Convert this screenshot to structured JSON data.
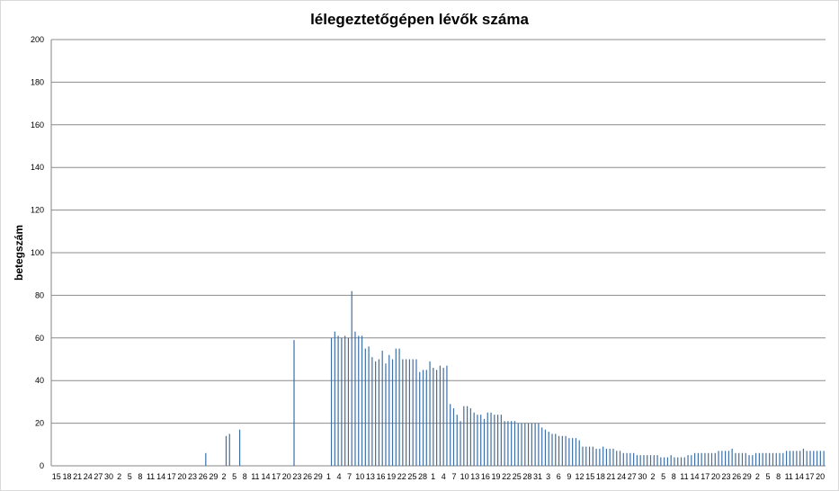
{
  "chart_data": {
    "type": "bar",
    "title": "lélegeztetőgépen lévők száma",
    "xlabel": "",
    "ylabel": "betegszám",
    "ylim": [
      0,
      200
    ],
    "yticks": [
      0,
      20,
      40,
      60,
      80,
      100,
      120,
      140,
      160,
      180,
      200
    ],
    "grid": true,
    "legend": "none",
    "xtick_labels": [
      "15",
      "18",
      "21",
      "24",
      "27",
      "30",
      "2",
      "5",
      "8",
      "11",
      "14",
      "17",
      "20",
      "23",
      "26",
      "29",
      "2",
      "5",
      "8",
      "11",
      "14",
      "17",
      "20",
      "23",
      "26",
      "29",
      "1",
      "4",
      "7",
      "10",
      "13",
      "16",
      "19",
      "22",
      "25",
      "28",
      "1",
      "4",
      "7",
      "10",
      "13",
      "16",
      "19",
      "22",
      "25",
      "28",
      "31",
      "3",
      "6",
      "9",
      "12",
      "15",
      "18",
      "21",
      "24",
      "27",
      "30",
      "2",
      "5",
      "8",
      "11",
      "14",
      "17",
      "20",
      "23",
      "26",
      "29",
      "2",
      "5",
      "8",
      "11",
      "14",
      "17",
      "20"
    ],
    "series": [
      {
        "color": "#3d6fa6",
        "values": [
          0,
          0,
          0,
          0,
          0,
          0,
          0,
          0,
          0,
          0,
          0,
          0,
          0,
          0,
          0,
          0,
          0,
          0,
          0,
          0,
          0,
          0,
          0,
          0,
          0,
          0,
          0,
          0,
          0,
          0,
          0,
          0,
          0,
          0,
          0,
          0,
          0,
          0,
          0,
          0,
          0,
          0,
          0,
          0,
          0,
          6,
          0,
          0,
          0,
          0,
          0,
          14,
          15,
          0,
          0,
          17,
          0,
          0,
          0,
          0,
          0,
          0,
          0,
          0,
          0,
          0,
          0,
          0,
          0,
          0,
          0,
          59,
          0,
          0,
          0,
          0,
          0,
          0,
          0,
          0,
          0,
          0,
          60,
          63,
          61,
          60,
          61,
          60,
          82,
          63,
          61,
          61,
          55,
          56,
          51,
          49,
          50,
          54,
          48,
          52,
          50,
          55,
          55,
          50,
          50,
          50,
          50,
          50,
          44,
          45,
          45,
          49,
          46,
          45,
          47,
          46,
          47,
          29,
          27,
          24,
          21,
          28,
          28,
          27,
          25,
          24,
          24,
          22,
          25,
          25,
          24,
          24,
          24,
          21,
          21,
          21,
          21,
          20,
          20,
          20,
          20,
          20,
          20,
          20,
          18,
          17,
          16,
          15,
          15,
          14,
          14,
          14,
          13,
          13,
          13,
          12,
          9,
          9,
          9,
          9,
          8,
          8,
          9,
          8,
          8,
          8,
          7,
          7,
          6,
          6,
          6,
          6,
          5,
          5,
          5,
          5,
          5,
          5,
          5,
          4,
          4,
          4,
          5,
          4,
          4,
          4,
          4,
          5,
          5,
          6,
          6,
          6,
          6,
          6,
          6,
          6,
          7,
          7,
          7,
          7,
          8,
          6,
          6,
          6,
          6,
          5,
          5,
          6,
          6,
          6,
          6,
          6,
          6,
          6,
          6,
          6,
          7,
          7,
          7,
          7,
          7,
          8,
          7,
          7,
          7,
          7,
          7,
          7
        ]
      },
      {
        "color": "#b5413a",
        "values": [
          0,
          0,
          0,
          0,
          0,
          0,
          0,
          0,
          0,
          0,
          0,
          0,
          0,
          0,
          0,
          0,
          0,
          0,
          0,
          0,
          0,
          0,
          0,
          0,
          0,
          0,
          0,
          0,
          0,
          0,
          0,
          0,
          0,
          0,
          0,
          0,
          0,
          0,
          0,
          0,
          0,
          0,
          0,
          0,
          0,
          0,
          0,
          0,
          0,
          0,
          0,
          0,
          0,
          0,
          0,
          0,
          0,
          0,
          0,
          0,
          0,
          0,
          0,
          0,
          0,
          0,
          0,
          0,
          0,
          0,
          0,
          0,
          0,
          0,
          0,
          0,
          0,
          0,
          0,
          0,
          0,
          0,
          0,
          0,
          0,
          0,
          0,
          0,
          0,
          0,
          0,
          0,
          0,
          0,
          0,
          0,
          0,
          0,
          0,
          0,
          0,
          0,
          0,
          0,
          0,
          0,
          0,
          0,
          0,
          0,
          0,
          0,
          0,
          0,
          0,
          0,
          0,
          0,
          0,
          0,
          0,
          0,
          0,
          0,
          0,
          0,
          0,
          0,
          0,
          0,
          0,
          0,
          0,
          0,
          0,
          0,
          0,
          0,
          0,
          0,
          0,
          0,
          0,
          0,
          0,
          0,
          0,
          0,
          0,
          0,
          0,
          0,
          0,
          0,
          0,
          0,
          0,
          0,
          0,
          0,
          0,
          0,
          0,
          0,
          0,
          0,
          0,
          0,
          0,
          0,
          0,
          0,
          0,
          0,
          0,
          0,
          0,
          0,
          0,
          0,
          0,
          0,
          0,
          0,
          0,
          0,
          0,
          0,
          0,
          0,
          0,
          0,
          0,
          0,
          0,
          0,
          0,
          0,
          0,
          0,
          0,
          0,
          0,
          0,
          0,
          0,
          0,
          0,
          0,
          0,
          0,
          0,
          0,
          0,
          0,
          0,
          0,
          0,
          0,
          0,
          0,
          0,
          0,
          0,
          0,
          0,
          0,
          0,
          0,
          0,
          0,
          0,
          0,
          0,
          0,
          0,
          0,
          0,
          7,
          7,
          7,
          7,
          7,
          8,
          8,
          9,
          10,
          11,
          12,
          13,
          13,
          12,
          14,
          14,
          15,
          16,
          16,
          17,
          18,
          20,
          22,
          29,
          30,
          32,
          33,
          35,
          36,
          35,
          33,
          31,
          35,
          36,
          37,
          43,
          46,
          51,
          54,
          52,
          48,
          45,
          43,
          42,
          41,
          38,
          40,
          41,
          56,
          82,
          110,
          138,
          154,
          160,
          155,
          165,
          167,
          173,
          185,
          178,
          188,
          197,
          200,
          197
        ]
      }
    ]
  }
}
